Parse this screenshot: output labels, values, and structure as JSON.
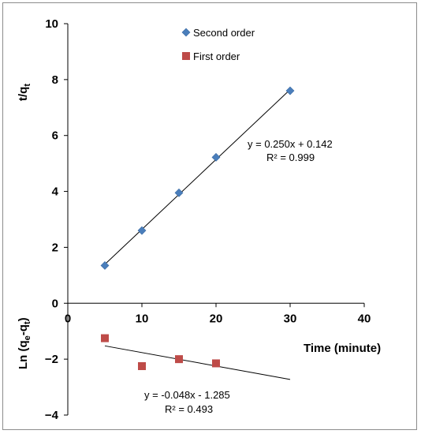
{
  "chart_data": {
    "type": "scatter",
    "x_axis": {
      "label": "Time  (minute)",
      "range": [
        0,
        40
      ],
      "ticks": [
        0,
        10,
        20,
        30,
        40
      ],
      "tick_labels": [
        "0",
        "10",
        "20",
        "30",
        "40"
      ]
    },
    "y_axis": {
      "range": [
        -4,
        10
      ],
      "ticks": [
        -4,
        -2,
        0,
        2,
        4,
        6,
        8,
        10
      ],
      "tick_labels": [
        "−4",
        "−2",
        "0",
        "2",
        "4",
        "6",
        "8",
        "10"
      ],
      "label_upper_main": "t/q",
      "label_upper_sub": "t",
      "label_lower_prefix": "Ln (q",
      "label_lower_sub1": "e",
      "label_lower_mid": "-q",
      "label_lower_sub2": "t",
      "label_lower_suffix": ")"
    },
    "grid": false,
    "legend_position": "top-center",
    "series": [
      {
        "name": "Second order",
        "marker": "diamond",
        "color": "#4a7ebb",
        "x": [
          5,
          10,
          15,
          20,
          30
        ],
        "y": [
          1.35,
          2.6,
          3.95,
          5.22,
          7.6
        ],
        "trendline": {
          "slope": 0.25,
          "intercept": 0.142,
          "x_range": [
            5,
            30
          ]
        },
        "equation": "y = 0.250x + 0.142",
        "r_squared": "R² = 0.999"
      },
      {
        "name": "First order",
        "marker": "square",
        "color": "#be4b48",
        "x": [
          5,
          10,
          15,
          20
        ],
        "y": [
          -1.25,
          -2.25,
          -2.0,
          -2.15
        ],
        "trendline": {
          "slope": -0.048,
          "intercept": -1.285,
          "x_range": [
            5,
            30
          ]
        },
        "equation": "y = -0.048x - 1.285",
        "r_squared": "R² = 0.493"
      }
    ]
  }
}
